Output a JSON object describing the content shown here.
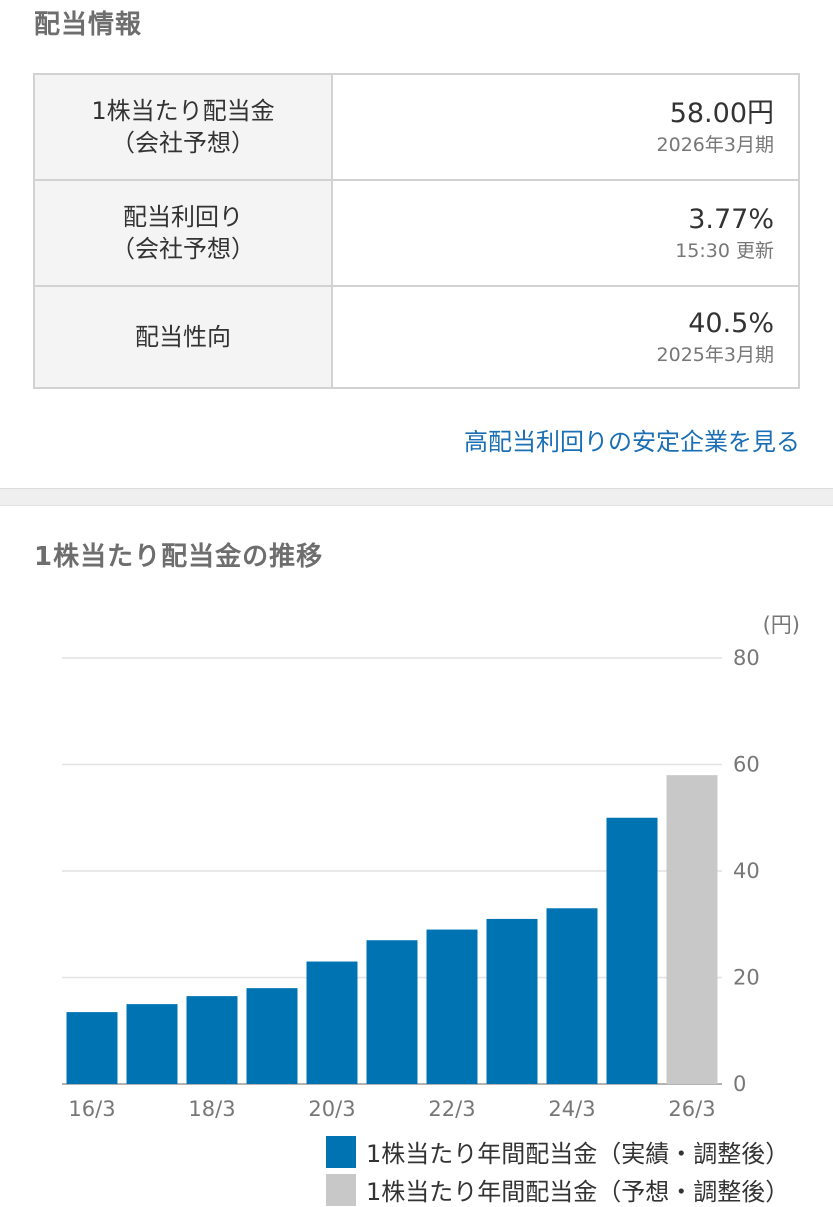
{
  "dividend_info": {
    "title": "配当情報",
    "rows": [
      {
        "label_line1": "1株当たり配当金",
        "label_line2": "（会社予想）",
        "value": "58.00円",
        "sub": "2026年3月期"
      },
      {
        "label_line1": "配当利回り",
        "label_line2": "（会社予想）",
        "value": "3.77%",
        "sub": "15:30 更新"
      },
      {
        "label_line1": "配当性向",
        "label_line2": "",
        "value": "40.5%",
        "sub": "2025年3月期"
      }
    ],
    "link_label": "高配当利回りの安定企業を見る"
  },
  "chart_section": {
    "title": "1株当たり配当金の推移"
  },
  "colors": {
    "actual": "#0073b3",
    "forecast": "#c8c8c8",
    "link": "#1a6fb5",
    "grid": "#e2e2e2"
  },
  "chart_data": {
    "type": "bar",
    "unit": "(円)",
    "categories": [
      "16/3",
      "17/3",
      "18/3",
      "19/3",
      "20/3",
      "21/3",
      "22/3",
      "23/3",
      "24/3",
      "25/3",
      "26/3"
    ],
    "x_tick_labels": [
      "16/3",
      "18/3",
      "20/3",
      "22/3",
      "24/3",
      "26/3"
    ],
    "series": [
      {
        "name": "1株当たり年間配当金（実績・調整後）",
        "color": "#0073b3",
        "values": [
          13.5,
          15,
          16.5,
          18,
          23,
          27,
          29,
          31,
          33,
          50,
          null
        ]
      },
      {
        "name": "1株当たり年間配当金（予想・調整後）",
        "color": "#c8c8c8",
        "values": [
          null,
          null,
          null,
          null,
          null,
          null,
          null,
          null,
          null,
          null,
          58
        ]
      }
    ],
    "y_ticks": [
      0,
      20,
      40,
      60,
      80
    ],
    "ylim": [
      0,
      80
    ],
    "grid": true,
    "legend_position": "bottom-right"
  }
}
